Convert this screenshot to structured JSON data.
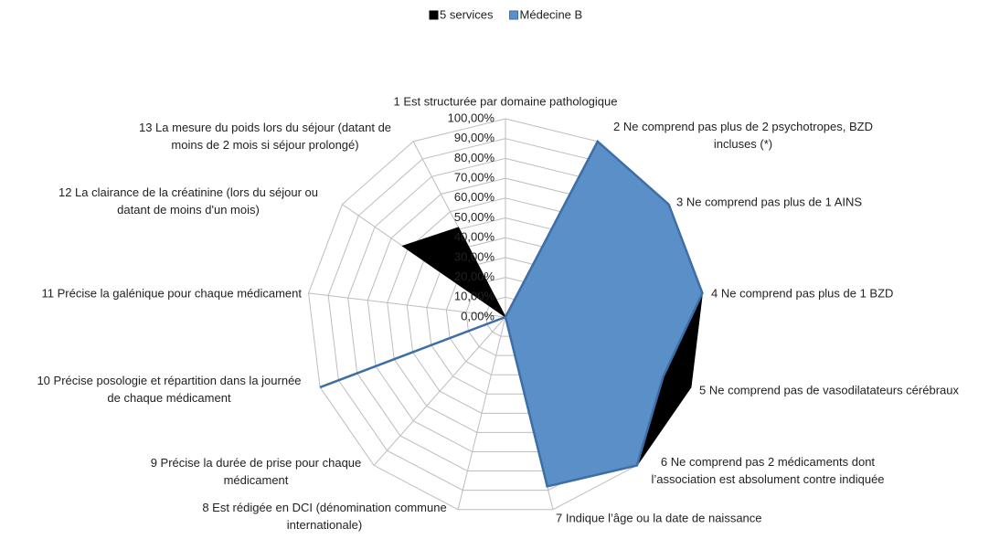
{
  "chart_data": {
    "type": "radar",
    "categories": [
      "1 Est structurée par domaine pathologique",
      "2 Ne comprend pas plus de 2 psychotropes, BZD\nincluses (*)",
      "3 Ne comprend pas plus de 1 AINS",
      "4 Ne comprend pas plus de 1 BZD",
      "5 Ne comprend pas de vasodilatateurs cérébraux",
      "6 Ne comprend pas 2 médicaments dont\nl’association est absolument contre indiquée",
      "7 Indique l’âge ou la date de naissance",
      "8 Est rédigée en DCI (dénomination commune\ninternationale)",
      "9 Précise la durée de prise pour chaque\nmédicament",
      "10 Précise posologie et répartition dans la journée\nde chaque médicament",
      "11 Précise la galénique  pour chaque médicament",
      "12 La clairance de la créatinine (lors du séjour ou\ndatant de moins d'un mois)",
      "13 La mesure du poids lors du séjour (datant de\nmoins de 2 mois si séjour prolongé)"
    ],
    "series": [
      {
        "name": "5 services",
        "color": "#000000",
        "values": [
          0,
          100,
          100,
          100,
          100,
          100,
          88,
          0,
          0,
          0,
          0,
          63,
          51
        ]
      },
      {
        "name": "Médecine B",
        "color": "#5b8fc7",
        "values": [
          0,
          100,
          100,
          100,
          85,
          100,
          88,
          0,
          0,
          100,
          0,
          0,
          0
        ]
      }
    ],
    "ylim": [
      0,
      100
    ],
    "yticks": [
      {
        "value": 0,
        "label": "0,00%"
      },
      {
        "value": 10,
        "label": "10,00%"
      },
      {
        "value": 20,
        "label": "20,00%"
      },
      {
        "value": 30,
        "label": "30,00%"
      },
      {
        "value": 40,
        "label": "40,00%"
      },
      {
        "value": 50,
        "label": "50,00%"
      },
      {
        "value": 60,
        "label": "60,00%"
      },
      {
        "value": 70,
        "label": "70,00%"
      },
      {
        "value": 80,
        "label": "80,00%"
      },
      {
        "value": 90,
        "label": "90,00%"
      },
      {
        "value": 100,
        "label": "100,00%"
      }
    ],
    "grid": true,
    "legend": "top"
  }
}
